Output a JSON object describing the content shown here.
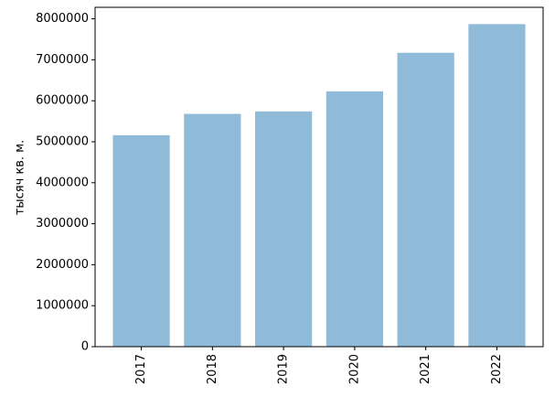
{
  "chart_data": {
    "type": "bar",
    "y_label": "тысяч кв. м.",
    "categories": [
      "2017",
      "2018",
      "2019",
      "2020",
      "2021",
      "2022"
    ],
    "values": [
      5160000,
      5680000,
      5740000,
      6230000,
      7170000,
      7870000
    ],
    "color": "#8fbbd9",
    "ylim": [
      0,
      8280000
    ],
    "yticks": [
      0,
      1000000,
      2000000,
      3000000,
      4000000,
      5000000,
      6000000,
      7000000,
      8000000
    ],
    "grid": false
  }
}
